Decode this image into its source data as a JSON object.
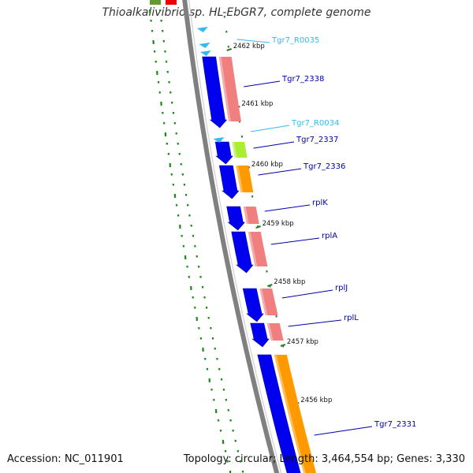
{
  "title": "Thioalkalivibrio sp. HL-EbGR7, complete genome",
  "footer": {
    "accession": "Accession: NC_011901",
    "summary": "Topology: circular; Length: 3,464,554 bp; Genes: 3,330"
  },
  "colors": {
    "backbone": "#808080",
    "cds": "#0000ee",
    "rna": "#33bbee",
    "label_dark": "#0000aa",
    "label_light": "#33bbee",
    "tick": "#2e7d2e",
    "gc_dots": "#1a8a1a",
    "salmon": "#f08080",
    "orange": "#ff9900",
    "lime": "#aaee33",
    "top_green": "#669933",
    "top_red": "#ee0000"
  },
  "map": {
    "ticks": [
      {
        "kbp": 2462,
        "label": "2462 kbp"
      },
      {
        "kbp": 2461,
        "label": "2461 kbp"
      },
      {
        "kbp": 2460,
        "label": "2460 kbp"
      },
      {
        "kbp": 2459,
        "label": "2459 kbp"
      },
      {
        "kbp": 2458,
        "label": "2458 kbp"
      },
      {
        "kbp": 2457,
        "label": "2457 kbp"
      },
      {
        "kbp": 2456,
        "label": "2456 kbp"
      }
    ],
    "features": [
      {
        "label": "Tgr7_R0035",
        "type": "rna"
      },
      {
        "label": "Tgr7_2338",
        "type": "cds",
        "cog": "salmon"
      },
      {
        "label": "Tgr7_R0034",
        "type": "rna"
      },
      {
        "label": "Tgr7_2337",
        "type": "cds",
        "cog": "lime"
      },
      {
        "label": "Tgr7_2336",
        "type": "cds",
        "cog": "orange"
      },
      {
        "label": "rplK",
        "type": "cds",
        "cog": "salmon"
      },
      {
        "label": "rplA",
        "type": "cds",
        "cog": "salmon"
      },
      {
        "label": "rplJ",
        "type": "cds",
        "cog": "salmon"
      },
      {
        "label": "rplL",
        "type": "cds",
        "cog": "salmon"
      },
      {
        "label": "Tgr7_2331",
        "type": "cds",
        "cog": "orange"
      }
    ]
  }
}
